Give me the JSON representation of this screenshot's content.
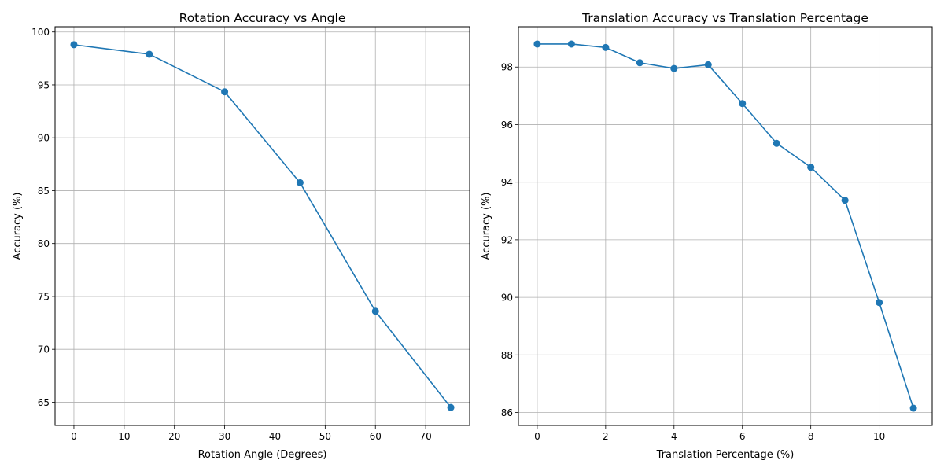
{
  "chart_data": [
    {
      "type": "line",
      "title": "Rotation Accuracy vs Angle",
      "xlabel": "Rotation Angle (Degrees)",
      "ylabel": "Accuracy (%)",
      "x": [
        0,
        15,
        30,
        45,
        60,
        75
      ],
      "series": [
        {
          "values": [
            98.8,
            97.9,
            94.35,
            85.75,
            73.6,
            64.5
          ]
        }
      ],
      "xlim": [
        -3.75,
        78.75
      ],
      "ylim": [
        62.8,
        100.5
      ],
      "xticks": [
        0,
        10,
        20,
        30,
        40,
        50,
        60,
        70
      ],
      "yticks": [
        65,
        70,
        75,
        80,
        85,
        90,
        95,
        100
      ],
      "grid": true,
      "marker": "circle",
      "line_color": "#1f77b4"
    },
    {
      "type": "line",
      "title": "Translation Accuracy vs Translation Percentage",
      "xlabel": "Translation Percentage (%)",
      "ylabel": "Accuracy (%)",
      "x": [
        0,
        1,
        2,
        3,
        4,
        5,
        6,
        7,
        8,
        9,
        10,
        11
      ],
      "series": [
        {
          "values": [
            98.8,
            98.8,
            98.68,
            98.15,
            97.95,
            98.08,
            96.73,
            95.35,
            94.52,
            93.37,
            89.82,
            86.15
          ]
        }
      ],
      "xlim": [
        -0.55,
        11.55
      ],
      "ylim": [
        85.55,
        99.4
      ],
      "xticks": [
        0,
        2,
        4,
        6,
        8,
        10
      ],
      "yticks": [
        86,
        88,
        90,
        92,
        94,
        96,
        98
      ],
      "grid": true,
      "marker": "circle",
      "line_color": "#1f77b4"
    }
  ]
}
